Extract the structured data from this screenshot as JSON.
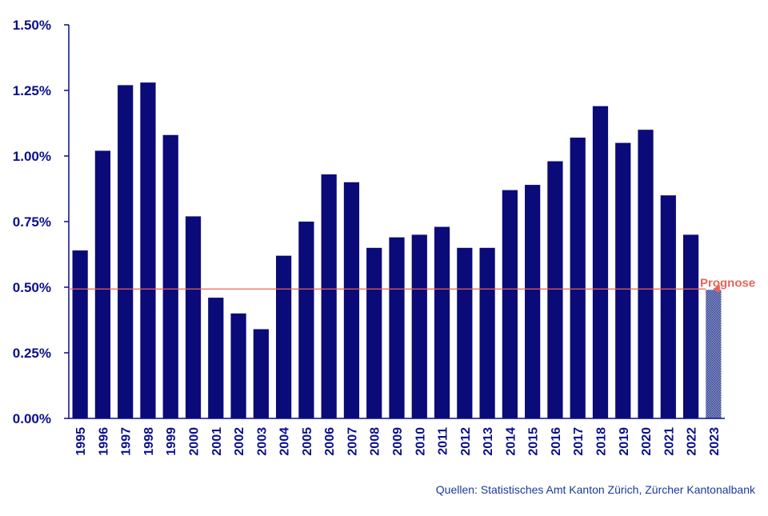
{
  "chart_data": {
    "type": "bar",
    "categories": [
      "1995",
      "1996",
      "1997",
      "1998",
      "1999",
      "2000",
      "2001",
      "2002",
      "2003",
      "2004",
      "2005",
      "2006",
      "2007",
      "2008",
      "2009",
      "2010",
      "2011",
      "2012",
      "2013",
      "2014",
      "2015",
      "2016",
      "2017",
      "2018",
      "2019",
      "2020",
      "2021",
      "2022",
      "2023"
    ],
    "values": [
      0.64,
      1.02,
      1.27,
      1.28,
      1.08,
      0.77,
      0.46,
      0.4,
      0.34,
      0.62,
      0.75,
      0.93,
      0.9,
      0.65,
      0.69,
      0.7,
      0.73,
      0.65,
      0.65,
      0.87,
      0.89,
      0.98,
      1.07,
      1.19,
      1.05,
      1.1,
      0.85,
      0.7,
      0.49
    ],
    "forecast_category": "2023",
    "forecast_label": "Prognose",
    "forecast_line_value": 0.49,
    "ylim": [
      0,
      1.5
    ],
    "yticks": [
      0,
      0.25,
      0.5,
      0.75,
      1.0,
      1.25,
      1.5
    ],
    "ytick_labels": [
      "0.00%",
      "0.25%",
      "0.50%",
      "0.75%",
      "1.00%",
      "1.25%",
      "1.50%"
    ],
    "title": "",
    "xlabel": "",
    "ylabel": "",
    "grid": false,
    "colors": {
      "bar": "#0a0a78",
      "axis": "#0a0f8c",
      "text": "#0a0f8c",
      "forecast_line": "#e8645a",
      "forecast_bar": "#2a3a8a",
      "source": "#1a3a9a"
    }
  },
  "source": "Quellen: Statistisches Amt Kanton Zürich, Zürcher Kantonalbank"
}
